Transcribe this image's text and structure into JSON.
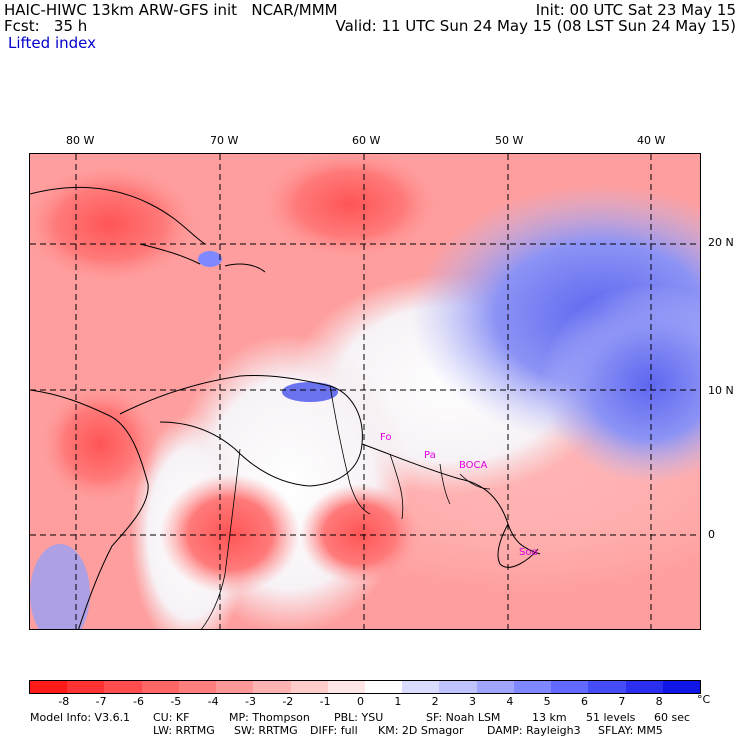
{
  "header": {
    "title": "HAIC-HIWC 13km ARW-GFS init   NCAR/MMM",
    "forecast": "Fcst:   35 h",
    "init": "Init: 00 UTC Sat 23 May 15",
    "valid": "Valid: 11 UTC Sun 24 May 15 (08 LST Sun 24 May 15)",
    "field": "Lifted index"
  },
  "map": {
    "lon_labels": [
      "80 W",
      "70 W",
      "60 W",
      "50 W",
      "40 W"
    ],
    "lat_labels": [
      "20 N",
      "10 N",
      "0"
    ],
    "stations": [
      "Fo",
      "Pa",
      "BOCA",
      "Soa"
    ]
  },
  "colorbar": {
    "ticks": [
      "-8",
      "-7",
      "-6",
      "-5",
      "-4",
      "-3",
      "-2",
      "-1",
      "0",
      "1",
      "2",
      "3",
      "4",
      "5",
      "6",
      "7",
      "8"
    ],
    "unit": "°C",
    "colors": [
      "#ff1a1a",
      "#ff3333",
      "#ff4d4d",
      "#ff6666",
      "#ff7f7f",
      "#ff9999",
      "#ffb3b3",
      "#ffcccc",
      "#ffe6e6",
      "#ffffff",
      "#d9dbff",
      "#bfc3ff",
      "#a0a6ff",
      "#8088ff",
      "#6169ff",
      "#444cf5",
      "#2a2eee",
      "#1016e6"
    ]
  },
  "footer": {
    "model_info": "Model Info: V3.6.1",
    "cu": "CU: KF",
    "mp": "MP: Thompson",
    "pbl": "PBL: YSU",
    "sf": "SF: Noah LSM",
    "res": "13 km",
    "levels": "51 levels",
    "dt": "60 sec",
    "lw": "LW: RRTMG",
    "sw": "SW: RRTMG",
    "diff": "DIFF: full",
    "km": "KM: 2D Smagor",
    "damp": "DAMP: Rayleigh3",
    "sflay": "SFLAY: MM5"
  }
}
